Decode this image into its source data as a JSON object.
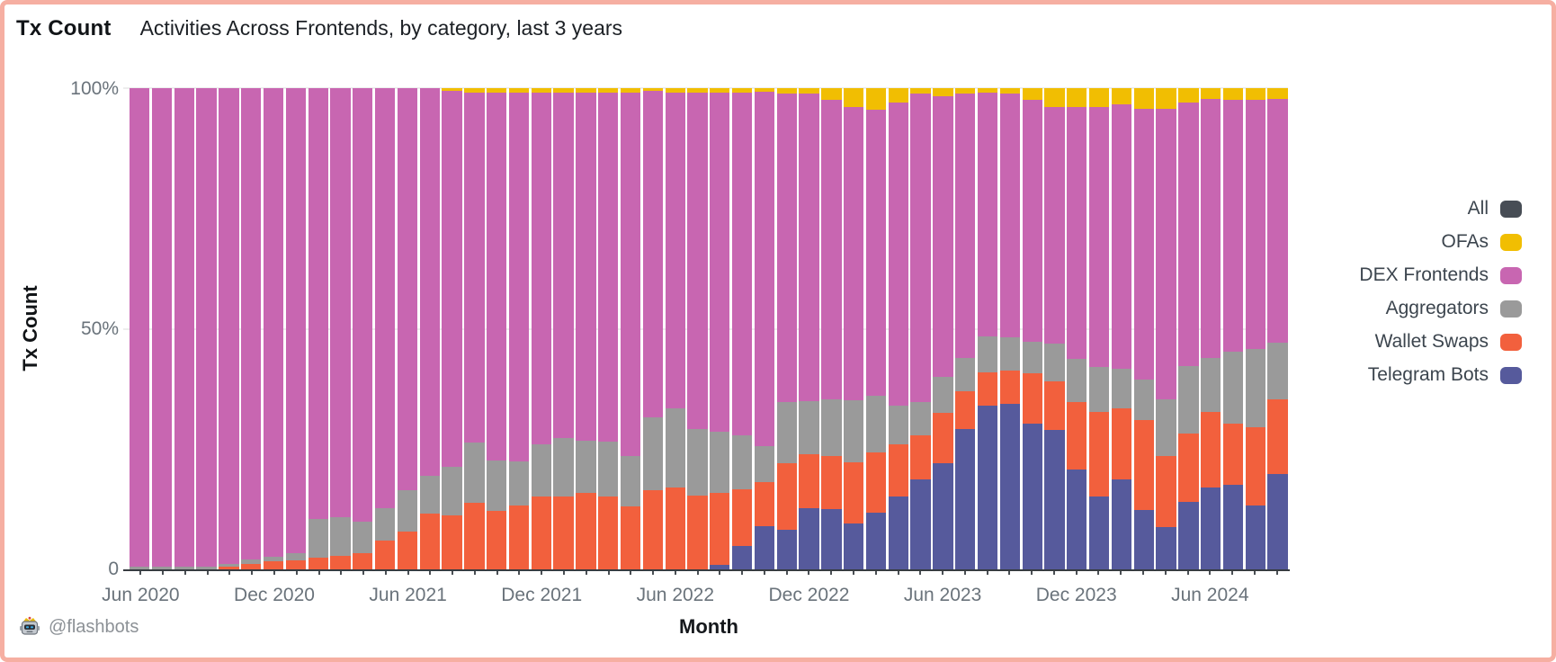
{
  "header": {
    "title": "Tx Count",
    "subtitle": "Activities Across Frontends, by category, last 3 years"
  },
  "chart_data": {
    "type": "bar",
    "stacked": true,
    "normalized": "percent",
    "title": "Tx Count",
    "subtitle": "Activities Across Frontends, by category, last 3 years",
    "xlabel": "Month",
    "ylabel": "Tx Count",
    "ylim": [
      0,
      100
    ],
    "y_ticks": [
      "100%",
      "50%",
      "0"
    ],
    "x_tick_labels": [
      "Jun 2020",
      "Dec 2020",
      "Jun 2021",
      "Dec 2021",
      "Jun 2022",
      "Dec 2022",
      "Jun 2023",
      "Dec 2023",
      "Jun 2024"
    ],
    "grid": "faint 50% line",
    "legend_position": "right",
    "categories": [
      "Jun 2020",
      "Jul 2020",
      "Aug 2020",
      "Sep 2020",
      "Oct 2020",
      "Nov 2020",
      "Dec 2020",
      "Jan 2021",
      "Feb 2021",
      "Mar 2021",
      "Apr 2021",
      "May 2021",
      "Jun 2021",
      "Jul 2021",
      "Aug 2021",
      "Sep 2021",
      "Oct 2021",
      "Nov 2021",
      "Dec 2021",
      "Jan 2022",
      "Feb 2022",
      "Mar 2022",
      "Apr 2022",
      "May 2022",
      "Jun 2022",
      "Jul 2022",
      "Aug 2022",
      "Sep 2022",
      "Oct 2022",
      "Nov 2022",
      "Dec 2022",
      "Jan 2023",
      "Feb 2023",
      "Mar 2023",
      "Apr 2023",
      "May 2023",
      "Jun 2023",
      "Jul 2023",
      "Aug 2023",
      "Sep 2023",
      "Oct 2023",
      "Nov 2023",
      "Dec 2023",
      "Jan 2024",
      "Feb 2024",
      "Mar 2024",
      "Apr 2024",
      "May 2024",
      "Jun 2024",
      "Jul 2024",
      "Aug 2024",
      "Sep 2024"
    ],
    "series": [
      {
        "name": "Telegram Bots",
        "color": "#565A9C",
        "values": [
          0,
          0,
          0,
          0,
          0,
          0,
          0,
          0,
          0,
          0,
          0,
          0,
          0,
          0,
          0,
          0,
          0,
          0,
          0,
          0,
          0,
          0,
          0,
          0,
          0,
          0,
          1,
          4.9,
          8.9,
          8.2,
          12.8,
          12.5,
          9.5,
          11.8,
          15.1,
          18.7,
          22,
          29.2,
          34.1,
          34.4,
          30.2,
          28.9,
          20.7,
          15.1,
          18.7,
          12.3,
          8.7,
          14.1,
          17.1,
          17.5,
          13.3,
          19.9
        ]
      },
      {
        "name": "Wallet Swaps",
        "color": "#F2603D",
        "values": [
          0,
          0,
          0,
          0,
          0.5,
          1.2,
          1.6,
          1.8,
          2.5,
          2.8,
          3.4,
          6,
          7.9,
          11.5,
          11.2,
          13.8,
          12.2,
          13.2,
          15.1,
          15.1,
          15.8,
          15.1,
          13,
          16.4,
          17,
          15.4,
          14.8,
          11.8,
          9.2,
          13.8,
          11.1,
          11.1,
          12.8,
          12.5,
          10.8,
          9.2,
          10.5,
          7.9,
          6.9,
          6.9,
          10.5,
          10.2,
          14.1,
          17.7,
          14.8,
          18.7,
          14.8,
          14.1,
          15.6,
          12.7,
          16.2,
          15.4
        ]
      },
      {
        "name": "Aggregators",
        "color": "#9A9A9A",
        "values": [
          0.5,
          0.5,
          0.6,
          0.6,
          0.7,
          0.8,
          1,
          1.5,
          8,
          8,
          6.5,
          6.8,
          8.6,
          7.9,
          10.2,
          12.5,
          10.5,
          9.2,
          10.9,
          12.2,
          10.9,
          11.5,
          10.5,
          15.1,
          16.4,
          13.8,
          12.8,
          11.1,
          7.5,
          12.8,
          11.1,
          11.8,
          12.8,
          11.8,
          8.2,
          6.9,
          7.5,
          6.9,
          7.5,
          6.9,
          6.6,
          7.9,
          8.9,
          9.2,
          8.2,
          8.5,
          11.8,
          14.1,
          11.3,
          15.1,
          16.3,
          11.8
        ]
      },
      {
        "name": "DEX Frontends",
        "color": "#C866B1",
        "values": [
          99.5,
          99.5,
          99.4,
          99.4,
          98.8,
          98,
          97.4,
          96.7,
          89.5,
          89.2,
          90.1,
          87.2,
          83.5,
          80.6,
          78.1,
          72.7,
          76.3,
          76.6,
          73,
          71.7,
          72.3,
          72.4,
          75.5,
          68,
          65.6,
          69.8,
          70.4,
          71.2,
          73.6,
          64,
          63.8,
          62.1,
          60.9,
          59.4,
          62.9,
          64.1,
          58.4,
          54.9,
          50.6,
          50.6,
          50.2,
          49.1,
          52.3,
          54.1,
          54.9,
          56.3,
          60.5,
          54.7,
          53.7,
          52.3,
          51.8,
          50.7
        ]
      },
      {
        "name": "OFAs",
        "color": "#F1BE02",
        "values": [
          0,
          0,
          0,
          0,
          0,
          0,
          0,
          0,
          0,
          0,
          0,
          0,
          0,
          0,
          0.5,
          1,
          1,
          1,
          1,
          1,
          1,
          1,
          1,
          0.5,
          1,
          1,
          1,
          1,
          0.8,
          1.2,
          1.2,
          2.5,
          4,
          4.5,
          3,
          1.1,
          1.6,
          1.1,
          0.9,
          1.2,
          2.5,
          3.9,
          4,
          3.9,
          3.4,
          4.2,
          4.2,
          3,
          2.3,
          2.4,
          2.4,
          2.2
        ]
      }
    ],
    "legend": [
      {
        "label": "All",
        "color": "#474D55"
      },
      {
        "label": "OFAs",
        "color": "#F1BE02"
      },
      {
        "label": "DEX Frontends",
        "color": "#C866B1"
      },
      {
        "label": "Aggregators",
        "color": "#9A9A9A"
      },
      {
        "label": "Wallet Swaps",
        "color": "#F2603D"
      },
      {
        "label": "Telegram Bots",
        "color": "#565A9C"
      }
    ]
  },
  "footer": {
    "icon": "flashbots-robot-icon",
    "attribution": "@flashbots"
  },
  "colors": {
    "frame_border": "#F6AFA2",
    "axis_line": "#373C41",
    "tick_text": "#6A737B",
    "background": "#FFFFFF"
  }
}
